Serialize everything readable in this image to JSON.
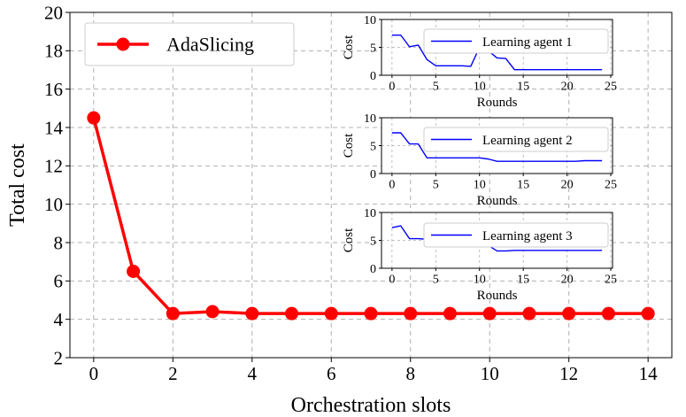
{
  "chart_data": [
    {
      "type": "line",
      "title": "",
      "xlabel": "Orchestration slots",
      "ylabel": "Total cost",
      "xlim": [
        -0.6,
        14.6
      ],
      "ylim": [
        2,
        20
      ],
      "xticks": [
        0,
        2,
        4,
        6,
        8,
        10,
        12,
        14
      ],
      "yticks": [
        2,
        4,
        6,
        8,
        10,
        12,
        14,
        16,
        18,
        20
      ],
      "grid": true,
      "legend_position": "top-left",
      "series": [
        {
          "name": "AdaSlicing",
          "color": "#ff0000",
          "marker": "circle",
          "x": [
            0,
            1,
            2,
            3,
            4,
            5,
            6,
            7,
            8,
            9,
            10,
            11,
            12,
            13,
            14
          ],
          "values": [
            14.5,
            6.5,
            4.3,
            4.4,
            4.3,
            4.3,
            4.3,
            4.3,
            4.3,
            4.3,
            4.3,
            4.3,
            4.3,
            4.3,
            4.3
          ]
        }
      ]
    },
    {
      "type": "line",
      "title": "",
      "xlabel": "Rounds",
      "ylabel": "Cost",
      "xlim": [
        -1.2,
        25.2
      ],
      "ylim": [
        0,
        10
      ],
      "xticks": [
        0,
        5,
        10,
        15,
        20,
        25
      ],
      "yticks": [
        0,
        5,
        10
      ],
      "grid": true,
      "legend_position": "top-right",
      "series": [
        {
          "name": "Learning agent 1",
          "color": "#0000ff",
          "x": [
            0,
            1,
            2,
            3,
            4,
            5,
            6,
            7,
            8,
            9,
            10,
            11,
            12,
            13,
            14,
            15,
            16,
            17,
            18,
            19,
            20,
            21,
            22,
            23,
            24
          ],
          "values": [
            7.2,
            7.2,
            5.1,
            5.4,
            2.8,
            1.7,
            1.7,
            1.7,
            1.7,
            1.6,
            5.0,
            4.4,
            3.1,
            3.0,
            1.0,
            1.0,
            1.0,
            1.0,
            1.0,
            1.0,
            1.0,
            1.0,
            1.0,
            1.0,
            1.0
          ]
        }
      ]
    },
    {
      "type": "line",
      "title": "",
      "xlabel": "Rounds",
      "ylabel": "Cost",
      "xlim": [
        -1.2,
        25.2
      ],
      "ylim": [
        0,
        10
      ],
      "xticks": [
        0,
        5,
        10,
        15,
        20,
        25
      ],
      "yticks": [
        0,
        5,
        10
      ],
      "grid": true,
      "legend_position": "top-right",
      "series": [
        {
          "name": "Learning agent 2",
          "color": "#0000ff",
          "x": [
            0,
            1,
            2,
            3,
            4,
            5,
            6,
            7,
            8,
            9,
            10,
            11,
            12,
            13,
            14,
            15,
            16,
            17,
            18,
            19,
            20,
            21,
            22,
            23,
            24
          ],
          "values": [
            7.3,
            7.3,
            5.3,
            5.3,
            2.8,
            2.8,
            2.8,
            2.8,
            2.8,
            2.8,
            2.8,
            2.6,
            2.2,
            2.2,
            2.2,
            2.2,
            2.2,
            2.2,
            2.2,
            2.2,
            2.2,
            2.2,
            2.3,
            2.3,
            2.3
          ]
        }
      ]
    },
    {
      "type": "line",
      "title": "",
      "xlabel": "Rounds",
      "ylabel": "Cost",
      "xlim": [
        -1.2,
        25.2
      ],
      "ylim": [
        0,
        10
      ],
      "xticks": [
        0,
        5,
        10,
        15,
        20,
        25
      ],
      "yticks": [
        0,
        5,
        10
      ],
      "grid": true,
      "legend_position": "top-right",
      "series": [
        {
          "name": "Learning agent 3",
          "color": "#0000ff",
          "x": [
            0,
            1,
            2,
            3,
            4,
            5,
            6,
            7,
            8,
            9,
            10,
            11,
            12,
            13,
            14,
            15,
            16,
            17,
            18,
            19,
            20,
            21,
            22,
            23,
            24
          ],
          "values": [
            7.3,
            7.6,
            5.3,
            5.3,
            5.2,
            5.2,
            5.2,
            5.2,
            5.2,
            5.0,
            4.6,
            4.1,
            3.1,
            3.1,
            3.2,
            3.2,
            3.2,
            3.2,
            3.2,
            3.2,
            3.2,
            3.2,
            3.2,
            3.2,
            3.2
          ]
        }
      ]
    }
  ]
}
